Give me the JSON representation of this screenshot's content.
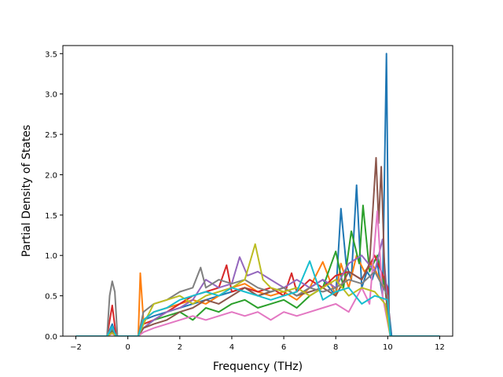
{
  "chart_data": {
    "type": "line",
    "title": "",
    "xlabel": "Frequency (THz)",
    "ylabel": "Partial Density of States",
    "xlim": [
      -2.5,
      12.5
    ],
    "ylim": [
      0,
      3.6
    ],
    "xticks": [
      -2,
      0,
      2,
      4,
      6,
      8,
      10,
      12
    ],
    "xtick_labels": [
      "−2",
      "0",
      "2",
      "4",
      "6",
      "8",
      "10",
      "12"
    ],
    "yticks": [
      0,
      0.5,
      1,
      1.5,
      2,
      2.5,
      3,
      3.5
    ],
    "ytick_labels": [
      "0.0",
      "0.5",
      "1.0",
      "1.5",
      "2.0",
      "2.5",
      "3.0",
      "3.5"
    ],
    "grid": false,
    "legend": false,
    "series_colors": [
      "#1f77b4",
      "#ff7f0e",
      "#2ca02c",
      "#d62728",
      "#9467bd",
      "#8c564b",
      "#e377c2",
      "#7f7f7f",
      "#bcbd22",
      "#17becf"
    ],
    "series": [
      {
        "color": "#1f77b4",
        "x": [
          -2,
          -0.8,
          -0.6,
          -0.45,
          0.4,
          0.6,
          1,
          1.5,
          2,
          2.5,
          3,
          3.5,
          4,
          4.5,
          5,
          5.5,
          6,
          6.5,
          7,
          7.5,
          8,
          8.2,
          8.4,
          8.6,
          8.8,
          9,
          9.2,
          9.4,
          9.6,
          9.8,
          9.95,
          10.05,
          10.15,
          12
        ],
        "y": [
          0,
          0,
          0.15,
          0,
          0,
          0.2,
          0.25,
          0.3,
          0.35,
          0.4,
          0.45,
          0.5,
          0.55,
          0.6,
          0.5,
          0.55,
          0.6,
          0.5,
          0.6,
          0.7,
          0.5,
          1.58,
          0.9,
          0.7,
          1.87,
          0.6,
          0.8,
          0.7,
          0.9,
          0.5,
          3.5,
          0.3,
          0,
          0
        ]
      },
      {
        "color": "#ff7f0e",
        "x": [
          -2,
          -0.8,
          -0.6,
          -0.45,
          0.4,
          0.48,
          0.6,
          1,
          1.5,
          2,
          2.5,
          3,
          3.5,
          4,
          4.5,
          5,
          5.5,
          6,
          6.5,
          7,
          7.5,
          8,
          8.2,
          8.5,
          8.8,
          9.1,
          9.4,
          9.7,
          10,
          10.1,
          12
        ],
        "y": [
          0,
          0,
          0.05,
          0,
          0,
          0.78,
          0.2,
          0.3,
          0.35,
          0.4,
          0.45,
          0.4,
          0.5,
          0.6,
          0.65,
          0.55,
          0.5,
          0.55,
          0.45,
          0.6,
          0.92,
          0.5,
          0.9,
          0.6,
          1.0,
          0.8,
          0.9,
          0.7,
          0.5,
          0,
          0
        ]
      },
      {
        "color": "#2ca02c",
        "x": [
          -2,
          -0.8,
          -0.6,
          -0.45,
          0.4,
          0.6,
          1,
          1.5,
          2,
          2.5,
          3,
          3.5,
          4,
          4.5,
          5,
          5.5,
          6,
          6.5,
          7,
          7.5,
          8,
          8.3,
          8.6,
          8.9,
          9.05,
          9.3,
          9.6,
          9.9,
          10.1,
          12
        ],
        "y": [
          0,
          0,
          0.08,
          0,
          0,
          0.1,
          0.2,
          0.25,
          0.3,
          0.2,
          0.35,
          0.3,
          0.4,
          0.45,
          0.35,
          0.4,
          0.45,
          0.35,
          0.5,
          0.6,
          1.05,
          0.6,
          1.3,
          0.9,
          1.62,
          0.8,
          1.0,
          0.6,
          0,
          0
        ]
      },
      {
        "color": "#d62728",
        "x": [
          -2,
          -0.8,
          -0.6,
          -0.45,
          0.4,
          0.6,
          1,
          1.5,
          2,
          2.5,
          3,
          3.5,
          3.8,
          4,
          4.5,
          5,
          5.5,
          6,
          6.3,
          6.5,
          7,
          7.5,
          8,
          8.5,
          9,
          9.5,
          10,
          10.1,
          12
        ],
        "y": [
          0,
          0,
          0.38,
          0,
          0,
          0.15,
          0.2,
          0.3,
          0.4,
          0.5,
          0.55,
          0.6,
          0.88,
          0.55,
          0.6,
          0.55,
          0.6,
          0.5,
          0.78,
          0.55,
          0.7,
          0.6,
          0.75,
          0.8,
          0.7,
          1.0,
          0.6,
          0,
          0
        ]
      },
      {
        "color": "#9467bd",
        "x": [
          -2,
          -0.8,
          -0.6,
          -0.45,
          0.4,
          0.6,
          1,
          1.5,
          2,
          2.5,
          3,
          3.5,
          4,
          4.3,
          4.6,
          5,
          5.5,
          6,
          6.5,
          7,
          7.5,
          8,
          8.5,
          9,
          9.5,
          9.8,
          10.1,
          12
        ],
        "y": [
          0,
          0,
          0.1,
          0,
          0,
          0.1,
          0.2,
          0.3,
          0.35,
          0.45,
          0.7,
          0.6,
          0.65,
          0.98,
          0.75,
          0.8,
          0.7,
          0.6,
          0.7,
          0.6,
          0.7,
          0.6,
          0.9,
          1.0,
          0.8,
          1.2,
          0,
          0
        ]
      },
      {
        "color": "#8c564b",
        "x": [
          -2,
          -0.8,
          -0.6,
          -0.45,
          0.4,
          0.6,
          1,
          1.5,
          2,
          2.5,
          3,
          3.5,
          4,
          4.5,
          5,
          5.5,
          6,
          6.5,
          7,
          7.5,
          8,
          8.5,
          9,
          9.3,
          9.55,
          9.65,
          9.75,
          9.9,
          10.1,
          12
        ],
        "y": [
          0,
          0,
          0.05,
          0,
          0,
          0.1,
          0.15,
          0.2,
          0.3,
          0.35,
          0.45,
          0.4,
          0.5,
          0.6,
          0.5,
          0.55,
          0.6,
          0.5,
          0.55,
          0.6,
          0.5,
          0.8,
          0.7,
          0.9,
          2.21,
          1.4,
          2.1,
          0.6,
          0,
          0
        ]
      },
      {
        "color": "#e377c2",
        "x": [
          -2,
          -0.8,
          -0.6,
          -0.45,
          0.4,
          0.6,
          1,
          1.5,
          2,
          2.5,
          3,
          3.5,
          4,
          4.5,
          5,
          5.5,
          6,
          6.5,
          7,
          7.5,
          8,
          8.5,
          9,
          9.3,
          9.6,
          9.8,
          10.1,
          12
        ],
        "y": [
          0,
          0,
          0.03,
          0,
          0,
          0.05,
          0.1,
          0.15,
          0.2,
          0.25,
          0.2,
          0.25,
          0.3,
          0.25,
          0.3,
          0.2,
          0.3,
          0.25,
          0.3,
          0.35,
          0.4,
          0.3,
          0.6,
          0.4,
          1.55,
          0.5,
          0,
          0
        ]
      },
      {
        "color": "#7f7f7f",
        "x": [
          -2,
          -0.8,
          -0.7,
          -0.6,
          -0.5,
          -0.4,
          0.4,
          0.6,
          1,
          1.5,
          2,
          2.5,
          2.8,
          3,
          3.5,
          4,
          4.5,
          5,
          5.5,
          6,
          6.5,
          7,
          7.5,
          8,
          8.5,
          9,
          9.5,
          10,
          10.1,
          12
        ],
        "y": [
          0,
          0,
          0.5,
          0.68,
          0.55,
          0,
          0,
          0.3,
          0.4,
          0.45,
          0.55,
          0.6,
          0.85,
          0.6,
          0.7,
          0.65,
          0.7,
          0.6,
          0.55,
          0.6,
          0.5,
          0.6,
          0.55,
          0.6,
          0.7,
          0.65,
          0.8,
          0.5,
          0,
          0
        ]
      },
      {
        "color": "#bcbd22",
        "x": [
          -2,
          -0.8,
          -0.6,
          -0.45,
          0.4,
          0.6,
          1,
          1.5,
          2,
          2.5,
          3,
          3.5,
          4,
          4.5,
          4.9,
          5.2,
          5.5,
          6,
          6.5,
          7,
          7.5,
          8,
          8.5,
          9,
          9.5,
          9.9,
          10.1,
          12
        ],
        "y": [
          0,
          0,
          0.04,
          0,
          0,
          0.15,
          0.4,
          0.45,
          0.5,
          0.4,
          0.5,
          0.55,
          0.6,
          0.7,
          1.14,
          0.7,
          0.6,
          0.55,
          0.6,
          0.5,
          0.6,
          0.7,
          0.5,
          0.6,
          0.55,
          0.4,
          0,
          0
        ]
      },
      {
        "color": "#17becf",
        "x": [
          -2,
          -0.8,
          -0.6,
          -0.45,
          0.4,
          0.6,
          1,
          1.5,
          2,
          2.5,
          3,
          3.5,
          4,
          4.5,
          5,
          5.5,
          6,
          6.5,
          7,
          7.5,
          8,
          8.5,
          9,
          9.5,
          10,
          10.1,
          12
        ],
        "y": [
          0,
          0,
          0.12,
          0,
          0,
          0.2,
          0.3,
          0.35,
          0.45,
          0.5,
          0.55,
          0.5,
          0.6,
          0.55,
          0.5,
          0.45,
          0.5,
          0.55,
          0.93,
          0.45,
          0.55,
          0.6,
          0.4,
          0.5,
          0.45,
          0,
          0
        ]
      }
    ]
  }
}
